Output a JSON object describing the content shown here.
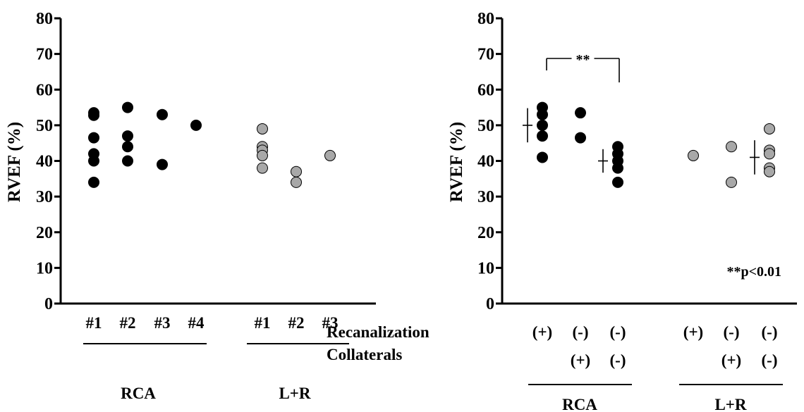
{
  "chart_data": [
    {
      "type": "scatter",
      "ylabel": "RVEF (%)",
      "ylim": [
        0,
        80
      ],
      "yticks": [
        "0",
        "10",
        "20",
        "30",
        "40",
        "50",
        "60",
        "70",
        "80"
      ],
      "categories": [
        "#1",
        "#2",
        "#3",
        "#4",
        "#1",
        "#2",
        "#3"
      ],
      "groups": [
        {
          "name": "RCA",
          "categories": [
            "#1",
            "#2",
            "#3",
            "#4"
          ]
        },
        {
          "name": "L+R",
          "categories": [
            "#1",
            "#2",
            "#3"
          ]
        }
      ],
      "series": [
        {
          "group": "RCA",
          "category": "#1",
          "fill": "#000000",
          "values": [
            53.5,
            52.8,
            46.5,
            42,
            40,
            34
          ]
        },
        {
          "group": "RCA",
          "category": "#2",
          "fill": "#000000",
          "values": [
            55,
            47,
            44,
            40
          ]
        },
        {
          "group": "RCA",
          "category": "#3",
          "fill": "#000000",
          "values": [
            53,
            39
          ]
        },
        {
          "group": "RCA",
          "category": "#4",
          "fill": "#000000",
          "values": [
            50
          ]
        },
        {
          "group": "L+R",
          "category": "#1",
          "fill": "#a8a8a8",
          "values": [
            49,
            44,
            43,
            41.5,
            38
          ]
        },
        {
          "group": "L+R",
          "category": "#2",
          "fill": "#a8a8a8",
          "values": [
            37,
            34
          ]
        },
        {
          "group": "L+R",
          "category": "#3",
          "fill": "#a8a8a8",
          "values": [
            41.5
          ]
        }
      ]
    },
    {
      "type": "scatter",
      "ylabel": "RVEF (%)",
      "ylim": [
        0,
        80
      ],
      "yticks": [
        "0",
        "10",
        "20",
        "30",
        "40",
        "50",
        "60",
        "70",
        "80"
      ],
      "row_labels": [
        "Recanalization",
        "Collaterals"
      ],
      "columns": [
        {
          "group": "RCA",
          "recanalization": "(+)",
          "collaterals": ""
        },
        {
          "group": "RCA",
          "recanalization": "(-)",
          "collaterals": "(+)"
        },
        {
          "group": "RCA",
          "recanalization": "(-)",
          "collaterals": "(-)"
        },
        {
          "group": "L+R",
          "recanalization": "(+)",
          "collaterals": ""
        },
        {
          "group": "L+R",
          "recanalization": "(-)",
          "collaterals": "(+)"
        },
        {
          "group": "L+R",
          "recanalization": "(-)",
          "collaterals": "(-)"
        }
      ],
      "groups": [
        "RCA",
        "L+R"
      ],
      "series": [
        {
          "column": 0,
          "fill": "#000000",
          "values": [
            55,
            53,
            50,
            47,
            41
          ],
          "mean": 50,
          "sd": 4.8
        },
        {
          "column": 1,
          "fill": "#000000",
          "values": [
            53.5,
            46.5
          ]
        },
        {
          "column": 2,
          "fill": "#000000",
          "values": [
            44,
            42,
            40,
            38,
            34
          ],
          "mean": 40,
          "sd": 3.3
        },
        {
          "column": 3,
          "fill": "#a8a8a8",
          "values": [
            41.5
          ]
        },
        {
          "column": 4,
          "fill": "#a8a8a8",
          "values": [
            44,
            34
          ]
        },
        {
          "column": 5,
          "fill": "#a8a8a8",
          "values": [
            49,
            43,
            42,
            38,
            37
          ],
          "mean": 41,
          "sd": 4.8
        }
      ],
      "significance": {
        "from_column": 0,
        "to_column": 2,
        "label": "**"
      },
      "annotation": "**p<0.01"
    }
  ]
}
